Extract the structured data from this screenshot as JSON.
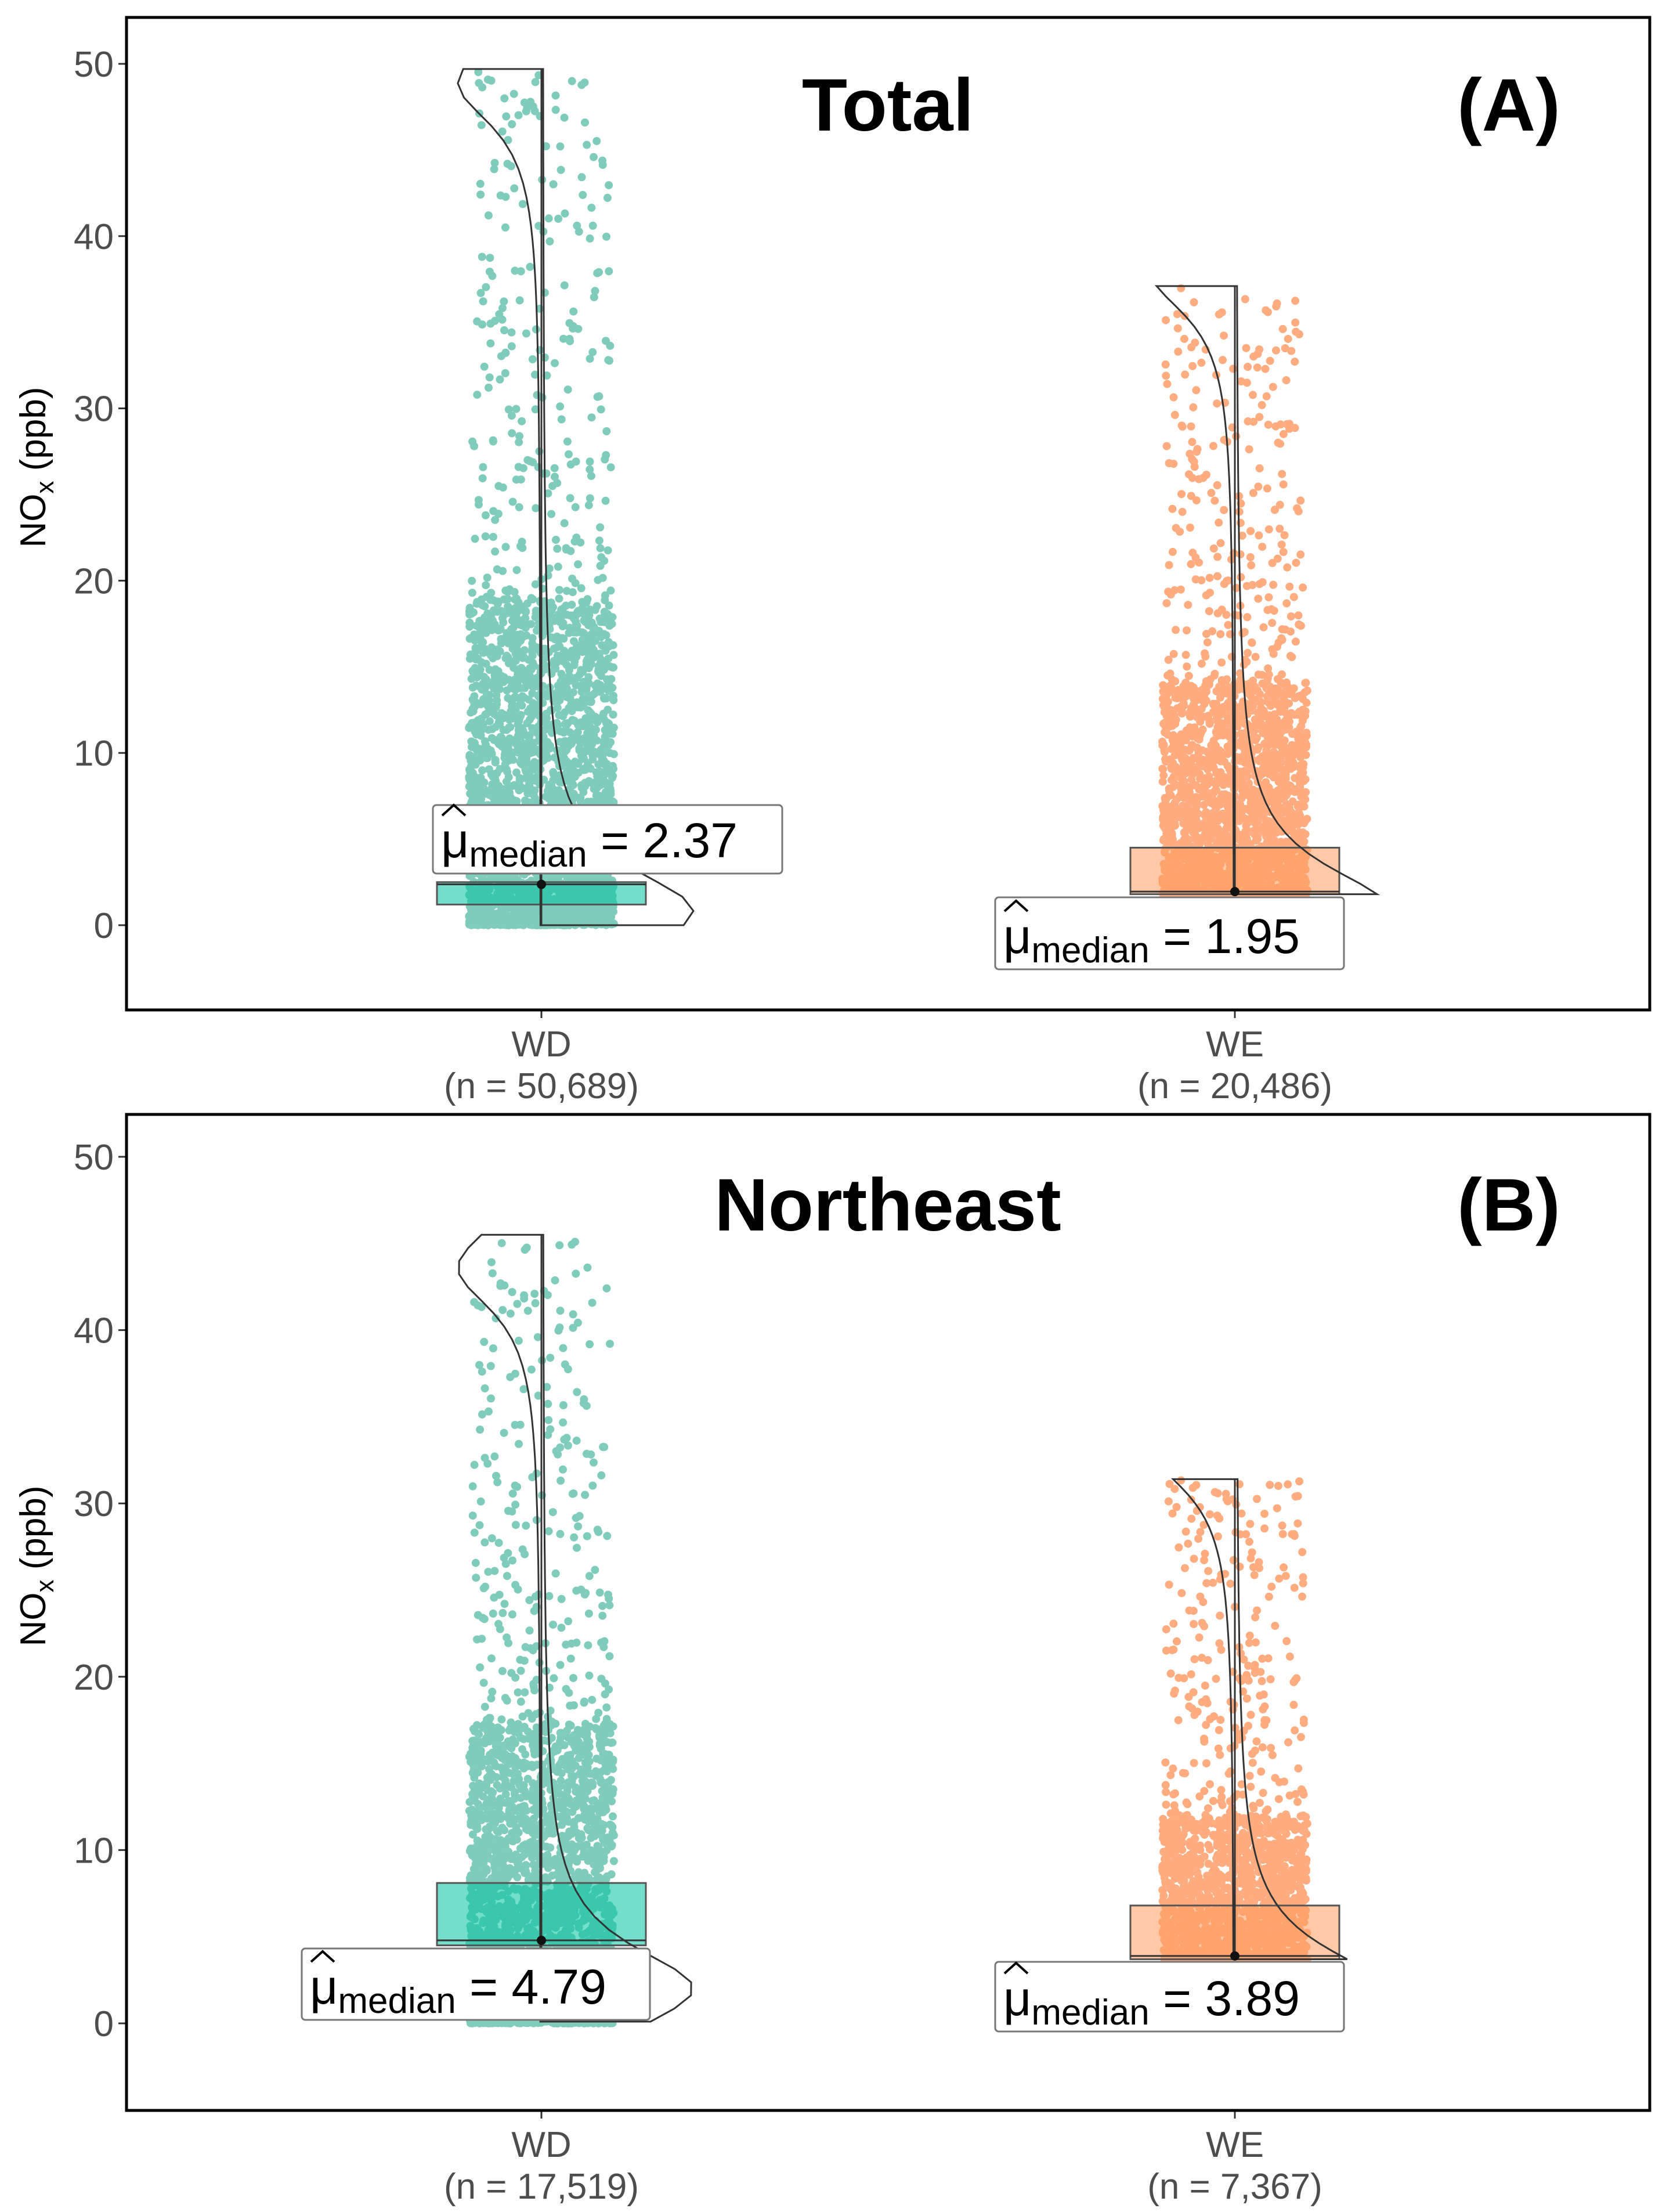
{
  "chart_data": [
    {
      "type": "box-violin-scatter",
      "title": "Total",
      "panel_tag": "(A)",
      "ylabel_main": "NO",
      "ylabel_sub": "x",
      "ylabel_unit": " (ppb)",
      "ylim": [
        -5,
        52
      ],
      "yticks": [
        0,
        10,
        20,
        30,
        40,
        50
      ],
      "groups": [
        {
          "category": "WD",
          "n_label": "(n = 50,689)",
          "color": "#1aa386",
          "box_color": "#00c5a0",
          "median": 2.37,
          "q1": 1.2,
          "q3": 2.5,
          "whisker_low": 0.0,
          "whisker_high": 49.7,
          "violin_wide": 0.8,
          "median_label": {
            "mu": "μ",
            "sub": "median",
            "eq": " = 2.37"
          }
        },
        {
          "category": "WE",
          "n_label": "(n = 20,486)",
          "color": "#ff6b1a",
          "box_color": "#ff9a5c",
          "median": 1.95,
          "q1": 1.8,
          "q3": 4.5,
          "whisker_low": 1.8,
          "whisker_high": 37.1,
          "violin_wide": 1.0,
          "median_label": {
            "mu": "μ",
            "sub": "median",
            "eq": " = 1.95"
          }
        }
      ]
    },
    {
      "type": "box-violin-scatter",
      "title": "Northeast",
      "panel_tag": "(B)",
      "ylabel_main": "NO",
      "ylabel_sub": "x",
      "ylabel_unit": " (ppb)",
      "ylim": [
        -5,
        52
      ],
      "yticks": [
        0,
        10,
        20,
        30,
        40,
        50
      ],
      "groups": [
        {
          "category": "WD",
          "n_label": "(n = 17,519)",
          "color": "#1aa386",
          "box_color": "#00c5a0",
          "median": 4.79,
          "q1": 4.5,
          "q3": 8.1,
          "whisker_low": 0.1,
          "whisker_high": 45.5,
          "violin_wide": 2.0,
          "median_label": {
            "mu": "μ",
            "sub": "median",
            "eq": " = 4.79"
          }
        },
        {
          "category": "WE",
          "n_label": "(n = 7,367)",
          "color": "#ff6b1a",
          "box_color": "#ff9a5c",
          "median": 3.89,
          "q1": 3.7,
          "q3": 6.8,
          "whisker_low": 3.7,
          "whisker_high": 31.4,
          "violin_wide": 1.9,
          "median_label": {
            "mu": "μ",
            "sub": "median",
            "eq": " = 3.89"
          }
        }
      ]
    }
  ]
}
